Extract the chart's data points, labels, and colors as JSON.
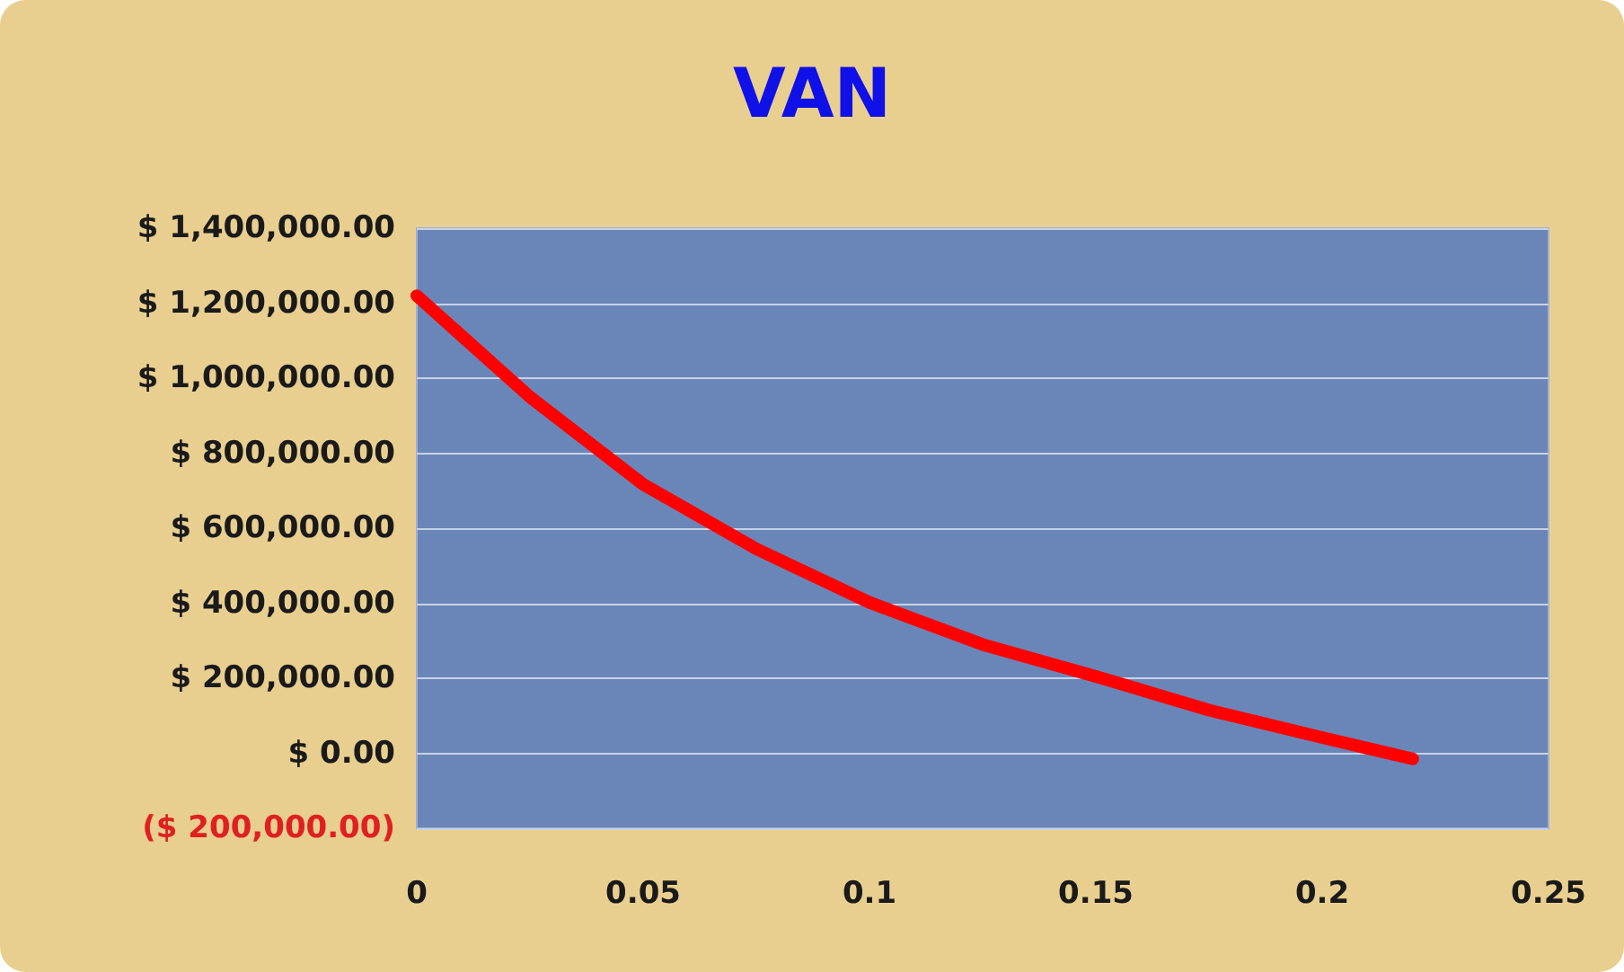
{
  "chart_data": {
    "type": "line",
    "title": "VAN",
    "x": [
      0,
      0.025,
      0.05,
      0.075,
      0.1,
      0.125,
      0.15,
      0.175,
      0.2,
      0.22
    ],
    "series": [
      {
        "color": "#ff0000",
        "values": [
          1220000,
          950000,
          717000,
          545000,
          402000,
          290000,
          205000,
          115000,
          42000,
          -15000
        ]
      }
    ],
    "xlim": [
      0,
      0.25
    ],
    "xticks": [
      0,
      0.05,
      0.1,
      0.15,
      0.2,
      0.25
    ],
    "ylim": [
      -200000,
      1400000
    ],
    "yticks": [
      {
        "value": -200000,
        "label": "($ 200,000.00)"
      },
      {
        "value": 0,
        "label": "$ 0.00"
      },
      {
        "value": 200000,
        "label": "$ 200,000.00"
      },
      {
        "value": 400000,
        "label": "$ 400,000.00"
      },
      {
        "value": 600000,
        "label": "$ 600,000.00"
      },
      {
        "value": 800000,
        "label": "$ 800,000.00"
      },
      {
        "value": 1000000,
        "label": "$ 1,000,000.00"
      },
      {
        "value": 1200000,
        "label": "$ 1,200,000.00"
      },
      {
        "value": 1400000,
        "label": "$ 1,400,000.00"
      }
    ],
    "grid": "y",
    "line_style": "solid"
  }
}
